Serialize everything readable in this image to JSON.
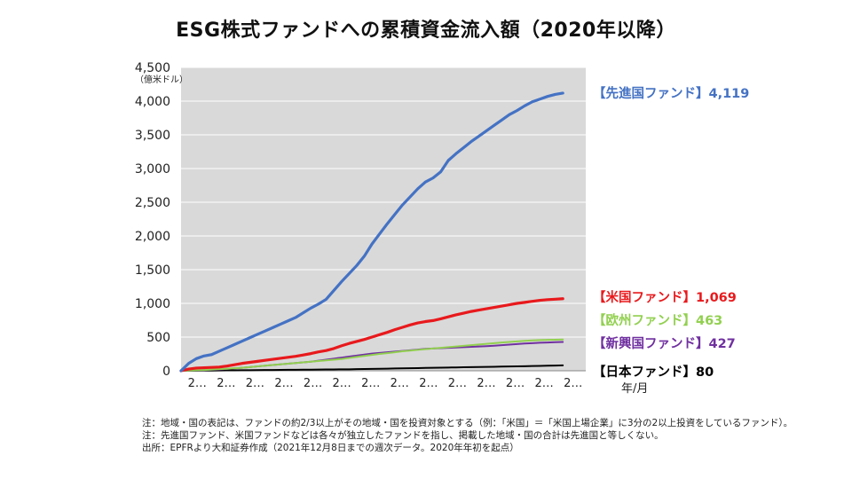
{
  "title": "ESG株式ファンドへの累積資金流入額（2020年以降）",
  "chart_data": {
    "type": "line",
    "title": "ESG株式ファンドへの累積資金流入額（2020年以降）",
    "ylabel": "（億米ドル）",
    "xlabel": "年/月",
    "ylim": [
      0,
      4500
    ],
    "yticks": [
      0,
      500,
      1000,
      1500,
      2000,
      2500,
      3000,
      3500,
      4000,
      4500
    ],
    "ytick_labels": [
      "0",
      "500",
      "1,000",
      "1,500",
      "2,000",
      "2,500",
      "3,000",
      "3,500",
      "4,000",
      "4,500"
    ],
    "xtick_labels": [
      "2…",
      "2…",
      "2…",
      "2…",
      "2…",
      "2…",
      "2…",
      "2…",
      "2…",
      "2…",
      "2…",
      "2…",
      "2…",
      "2…"
    ],
    "x": [
      0,
      1,
      2,
      3,
      4,
      5,
      6,
      7,
      8,
      9,
      10,
      11,
      12,
      13,
      14,
      15,
      16,
      17,
      18,
      19,
      20,
      21,
      22,
      23,
      24,
      25,
      26,
      27,
      28,
      29,
      30,
      31,
      32,
      33,
      34,
      35,
      36,
      37,
      38,
      39,
      40,
      41,
      42,
      43,
      44,
      45,
      46,
      47,
      48,
      49,
      50
    ],
    "xlim": [
      0,
      53
    ],
    "grid": "horizontal",
    "series": [
      {
        "name": "先進国ファンド",
        "label": "【先進国ファンド】4,119",
        "color": "#4472C4",
        "values": [
          0,
          110,
          180,
          220,
          240,
          290,
          340,
          390,
          440,
          490,
          540,
          590,
          640,
          690,
          740,
          790,
          860,
          930,
          990,
          1060,
          1190,
          1320,
          1440,
          1560,
          1700,
          1880,
          2030,
          2180,
          2320,
          2460,
          2580,
          2700,
          2800,
          2860,
          2950,
          3120,
          3220,
          3310,
          3400,
          3480,
          3560,
          3640,
          3720,
          3800,
          3860,
          3930,
          3990,
          4030,
          4070,
          4100,
          4119
        ]
      },
      {
        "name": "米国ファンド",
        "label": "【米国ファンド】1,069",
        "color": "#E8191C",
        "values": [
          0,
          25,
          40,
          45,
          50,
          55,
          70,
          90,
          110,
          125,
          140,
          155,
          170,
          185,
          200,
          215,
          235,
          255,
          280,
          300,
          330,
          370,
          405,
          435,
          465,
          500,
          535,
          570,
          610,
          645,
          680,
          710,
          730,
          745,
          770,
          800,
          830,
          855,
          880,
          900,
          920,
          940,
          960,
          980,
          1000,
          1015,
          1030,
          1045,
          1055,
          1062,
          1069
        ]
      },
      {
        "name": "欧州ファンド",
        "label": "【欧州ファンド】463",
        "color": "#92D050",
        "values": [
          0,
          3,
          8,
          12,
          18,
          24,
          30,
          38,
          45,
          55,
          65,
          75,
          85,
          95,
          105,
          115,
          125,
          135,
          145,
          155,
          165,
          175,
          190,
          205,
          220,
          235,
          250,
          262,
          275,
          290,
          300,
          310,
          320,
          330,
          340,
          350,
          360,
          370,
          380,
          390,
          400,
          410,
          420,
          428,
          436,
          444,
          450,
          455,
          459,
          461,
          463
        ]
      },
      {
        "name": "新興国ファンド",
        "label": "【新興国ファンド】427",
        "color": "#7030A0",
        "values": [
          0,
          3,
          6,
          10,
          14,
          20,
          28,
          36,
          45,
          55,
          65,
          75,
          85,
          95,
          105,
          115,
          125,
          135,
          150,
          165,
          180,
          195,
          210,
          225,
          240,
          255,
          265,
          275,
          285,
          295,
          305,
          315,
          325,
          330,
          335,
          340,
          345,
          350,
          355,
          360,
          365,
          372,
          380,
          388,
          396,
          404,
          410,
          416,
          420,
          424,
          427
        ]
      },
      {
        "name": "日本ファンド",
        "label": "【日本ファンド】80",
        "color": "#000000",
        "values": [
          0,
          1,
          2,
          3,
          4,
          5,
          6,
          7,
          8,
          9,
          10,
          11,
          12,
          13,
          14,
          15,
          16,
          17,
          18,
          19,
          20,
          21,
          22,
          24,
          26,
          28,
          30,
          32,
          34,
          36,
          38,
          40,
          42,
          44,
          46,
          48,
          50,
          52,
          54,
          56,
          58,
          60,
          62,
          64,
          66,
          68,
          70,
          73,
          76,
          78,
          80
        ]
      }
    ]
  },
  "notes": [
    "注：地域・国の表記は、ファンドの約2/3以上がその地域・国を投資対象とする（例：「米国」＝「米国上場企業」に3分の2以上投資をしているファンド）。",
    "注：先進国ファンド、米国ファンドなどは各々が独立したファンドを指し、掲載した地域・国の合計は先進国と等しくない。",
    "出所：EPFRより大和証券作成（2021年12月8日までの週次データ。2020年年初を起点）"
  ]
}
